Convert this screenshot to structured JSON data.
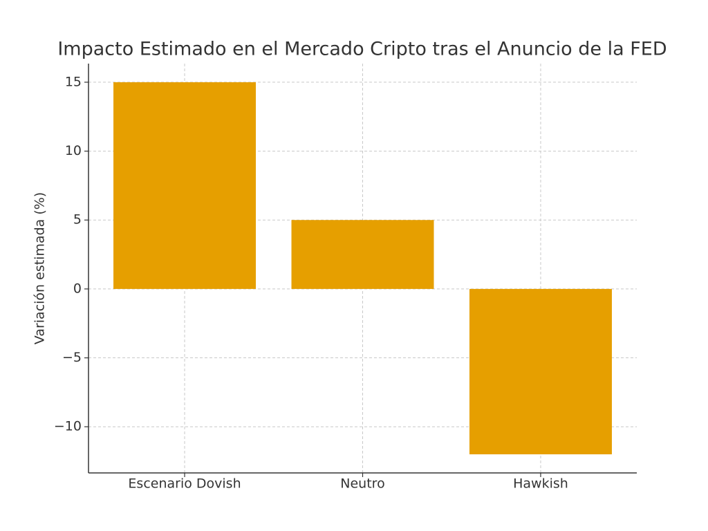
{
  "chart_data": {
    "type": "bar",
    "title": "Impacto Estimado en el Mercado Cripto tras el Anuncio de la FED",
    "y_label": "Variación estimada (%)",
    "categories": [
      "Escenario Dovish",
      "Neutro",
      "Hawkish"
    ],
    "values": [
      15,
      5,
      -12
    ],
    "color": "#e69f00",
    "ylim": [
      -13.35,
      16.35
    ],
    "yticks": [
      {
        "value": -10,
        "label": "−10"
      },
      {
        "value": -5,
        "label": "−5"
      },
      0,
      5,
      10,
      15
    ],
    "grid": true
  }
}
